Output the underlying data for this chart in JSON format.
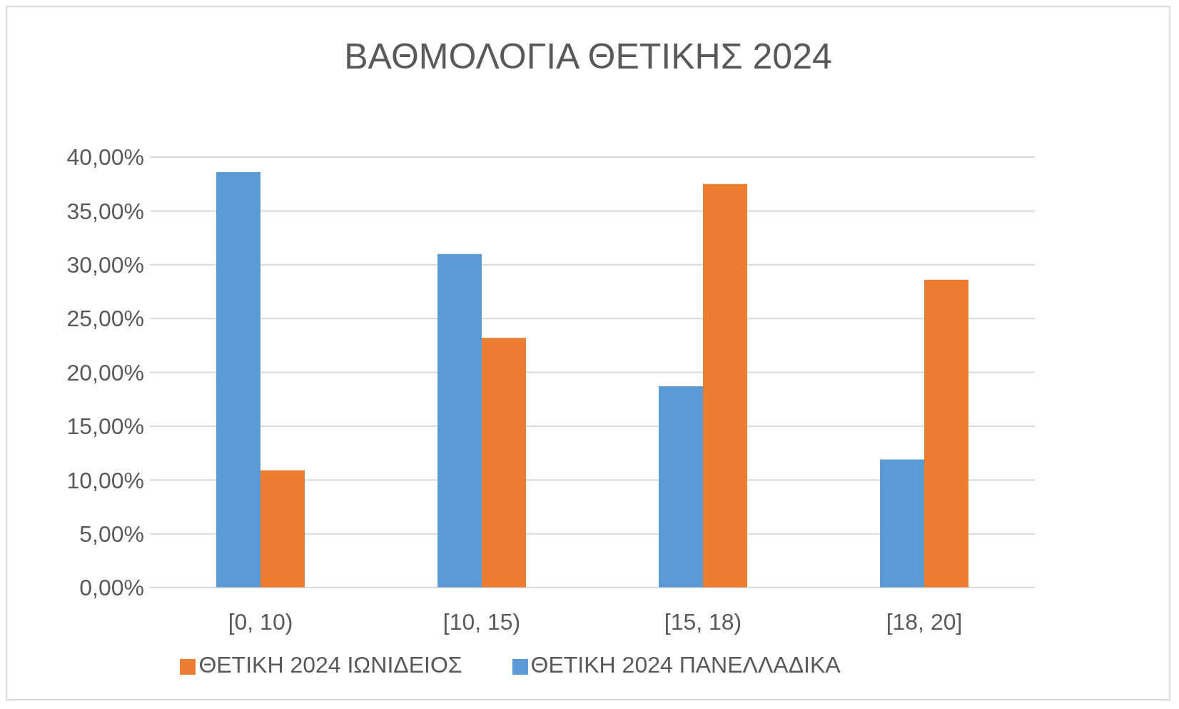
{
  "chart_data": {
    "type": "bar",
    "title": "ΒΑΘΜΟΛΟΓΙΑ ΘΕΤΙΚΗΣ 2024",
    "categories": [
      "[0, 10)",
      "[10, 15)",
      "[15, 18)",
      "[18, 20]"
    ],
    "series": [
      {
        "name": "ΘΕΤΙΚΗ 2024 ΠΑΝΕΛΛΑΔΙΚΑ",
        "color": "#5b9bd5",
        "values": [
          38.6,
          31.0,
          18.7,
          11.9
        ]
      },
      {
        "name": "ΘΕΤΙΚΗ 2024 ΙΩΝΙΔΕΙΟΣ",
        "color": "#ed7d31",
        "values": [
          10.9,
          23.2,
          37.5,
          28.6
        ]
      }
    ],
    "ylim": [
      0,
      40
    ],
    "yticks": [
      {
        "value": 0,
        "label": "0,00%"
      },
      {
        "value": 5,
        "label": "5,00%"
      },
      {
        "value": 10,
        "label": "10,00%"
      },
      {
        "value": 15,
        "label": "15,00%"
      },
      {
        "value": 20,
        "label": "20,00%"
      },
      {
        "value": 25,
        "label": "25,00%"
      },
      {
        "value": 30,
        "label": "30,00%"
      },
      {
        "value": 35,
        "label": "35,00%"
      },
      {
        "value": 40,
        "label": "40,00%"
      }
    ],
    "grid": "y",
    "legend": "bottom"
  }
}
